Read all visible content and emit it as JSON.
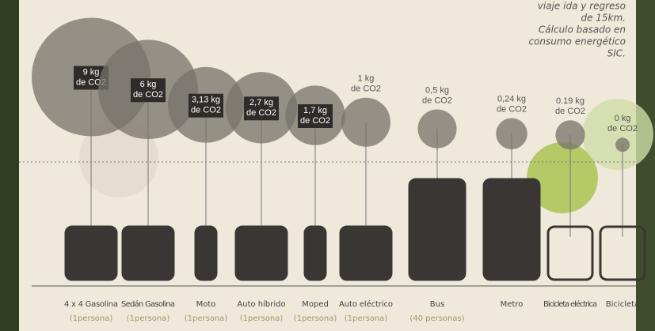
{
  "chart_data": {
    "type": "bubble",
    "note": [
      "viaje ida y regreso",
      "de 15km.",
      "Cálculo basado en",
      "consumo energético",
      "SIC."
    ],
    "categories": [
      "4 x 4 Gasolina",
      "Sedán Gasolina",
      "Moto",
      "Auto híbrido",
      "Moped",
      "Auto eléctrico",
      "Bus",
      "Metro",
      "Bicicleta eléctrica",
      "Bicicleta"
    ],
    "occupancy": [
      "(1persona)",
      "(1persona)",
      "(1persona)",
      "(1persona)",
      "(1persona)",
      "(1persona)",
      "(40 personas)",
      null,
      null,
      null
    ],
    "values": [
      9,
      6,
      3.13,
      2.7,
      1.7,
      1,
      0.5,
      0.24,
      0.19,
      0
    ],
    "value_labels": [
      "9 kg",
      "6 kg",
      "3,13 kg",
      "2,7 kg",
      "1,7 kg",
      "1 kg",
      "0,5 kg",
      "0,24 kg",
      "0.19 kg",
      "0 kg"
    ],
    "unit_label": "de CO2",
    "color": "#77716a"
  }
}
